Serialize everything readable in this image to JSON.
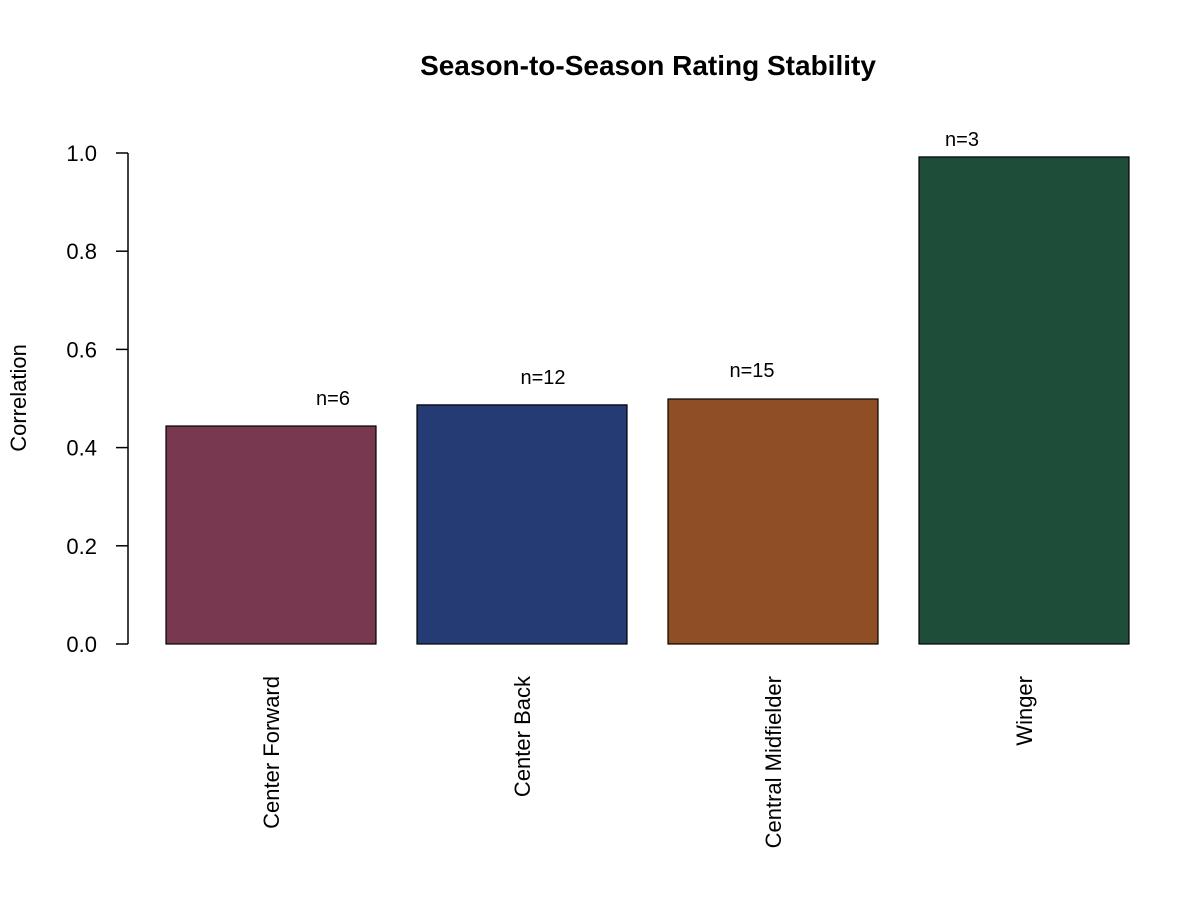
{
  "chart_data": {
    "type": "bar",
    "title": "Season-to-Season Rating Stability",
    "y_label": "Correlation",
    "categories": [
      "Center Forward",
      "Center Back",
      "Central Midfielder",
      "Winger"
    ],
    "values": [
      0.444,
      0.487,
      0.499,
      0.992
    ],
    "colors": [
      "#773850",
      "#253b73",
      "#8f4e24",
      "#1e4d3a"
    ],
    "annotations": [
      "n=6",
      "n=12",
      "n=15",
      "n=3"
    ],
    "ylim": [
      0,
      1
    ],
    "yticks": [
      {
        "value": 0,
        "label": "0.0"
      },
      {
        "value": 0.2,
        "label": "0.2"
      },
      {
        "value": 0.4,
        "label": "0.4"
      },
      {
        "value": 0.6,
        "label": "0.6"
      },
      {
        "value": 0.8,
        "label": "0.8"
      },
      {
        "value": 1,
        "label": "1.0"
      }
    ]
  }
}
